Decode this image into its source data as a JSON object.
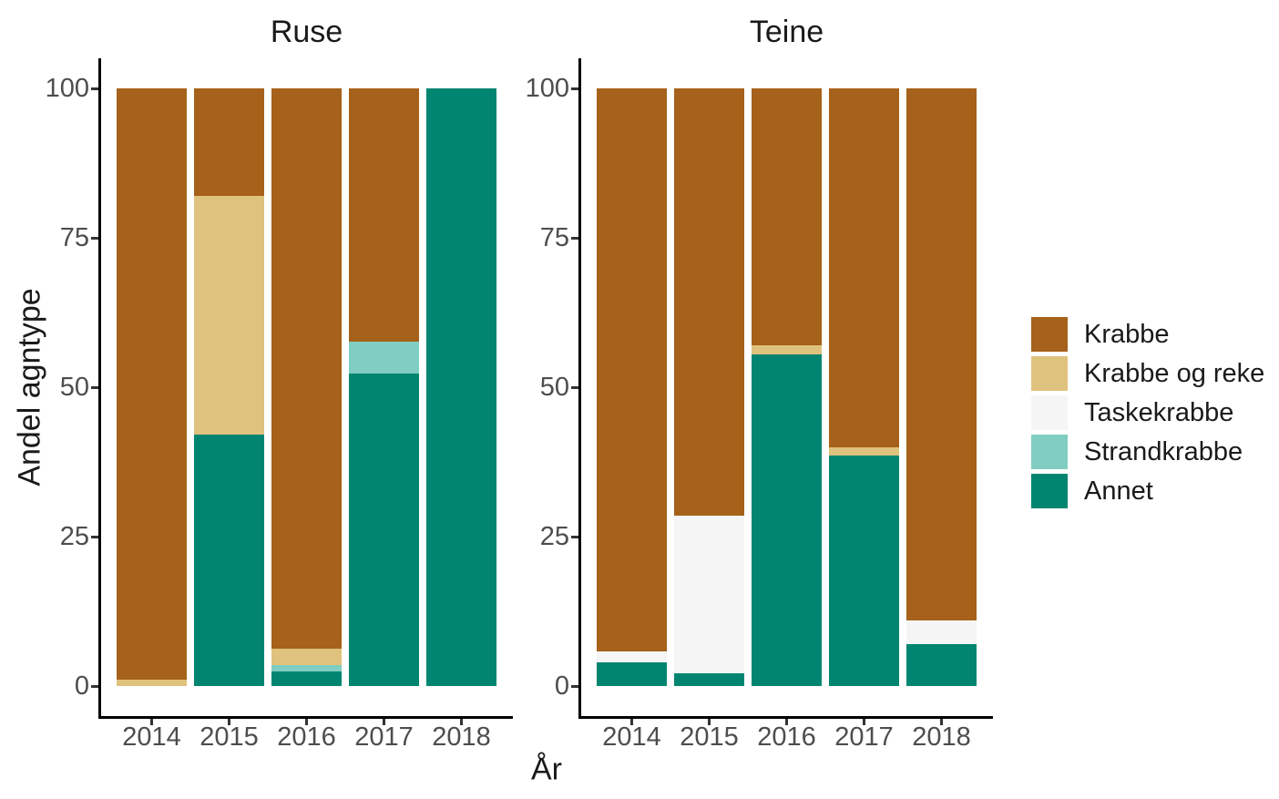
{
  "chart_data": {
    "type": "bar",
    "stacked": true,
    "unit": "percent",
    "ylabel": "Andel agntype",
    "xlabel": "År",
    "ylim": [
      0,
      100
    ],
    "yticks": [
      0,
      25,
      50,
      75,
      100
    ],
    "grid": false,
    "legend_position": "right",
    "legend": [
      {
        "label": "Krabbe",
        "color": "#A6611A"
      },
      {
        "label": "Krabbe og reke",
        "color": "#DFC27D"
      },
      {
        "label": "Taskekrabbe",
        "color": "#F5F5F5"
      },
      {
        "label": "Strandkrabbe",
        "color": "#80CDC1"
      },
      {
        "label": "Annet",
        "color": "#018571"
      }
    ],
    "facets": [
      {
        "title": "Ruse",
        "categories": [
          "2014",
          "2015",
          "2016",
          "2017",
          "2018"
        ],
        "series": [
          {
            "name": "Krabbe",
            "values": [
              99,
              18,
              93.7,
              42.4,
              0
            ]
          },
          {
            "name": "Krabbe og reke",
            "values": [
              1,
              40,
              2.8,
              0,
              0
            ]
          },
          {
            "name": "Taskekrabbe",
            "values": [
              0,
              0,
              0,
              0,
              0
            ]
          },
          {
            "name": "Strandkrabbe",
            "values": [
              0,
              0,
              1.1,
              5.3,
              0
            ]
          },
          {
            "name": "Annet",
            "values": [
              0,
              42,
              2.4,
              52.3,
              100
            ]
          }
        ]
      },
      {
        "title": "Teine",
        "categories": [
          "2014",
          "2015",
          "2016",
          "2017",
          "2018"
        ],
        "series": [
          {
            "name": "Krabbe",
            "values": [
              94.2,
              71.5,
              43,
              60,
              89
            ]
          },
          {
            "name": "Krabbe og reke",
            "values": [
              0,
              0,
              1.5,
              1.5,
              0
            ]
          },
          {
            "name": "Taskekrabbe",
            "values": [
              1.8,
              26.3,
              0,
              0,
              4
            ]
          },
          {
            "name": "Strandkrabbe",
            "values": [
              0,
              0,
              0,
              0,
              0
            ]
          },
          {
            "name": "Annet",
            "values": [
              4,
              2.2,
              55.5,
              38.5,
              7
            ]
          }
        ]
      }
    ]
  }
}
